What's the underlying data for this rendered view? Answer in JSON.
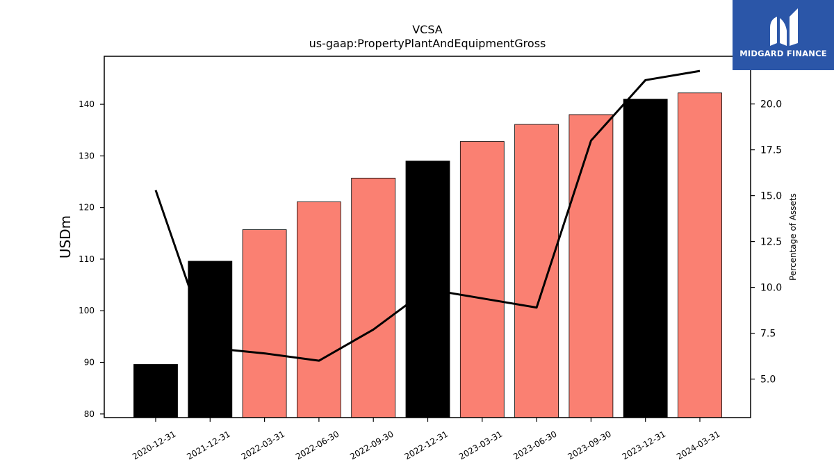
{
  "chart_data": {
    "type": "bar",
    "title": "VCSA",
    "subtitle": "us-gaap:PropertyPlantAndEquipmentGross",
    "ylabel": "USDm",
    "y2label": "Percentage of Assets",
    "ylim": [
      79.3,
      149.3
    ],
    "y2lim": [
      2.9,
      22.6
    ],
    "yticks": [
      80,
      90,
      100,
      110,
      120,
      130,
      140
    ],
    "y2ticks": [
      5.0,
      7.5,
      10.0,
      12.5,
      15.0,
      17.5,
      20.0
    ],
    "categories": [
      "2020-12-31",
      "2021-12-31",
      "2022-03-31",
      "2022-06-30",
      "2022-09-30",
      "2022-12-31",
      "2023-03-31",
      "2023-06-30",
      "2023-09-30",
      "2023-12-31",
      "2024-03-31"
    ],
    "values": [
      89.6,
      109.6,
      115.7,
      121.1,
      125.7,
      129.0,
      132.8,
      136.1,
      138.0,
      141.0,
      142.2
    ],
    "bar_colors": [
      "#000000",
      "#000000",
      "#fa8072",
      "#fa8072",
      "#fa8072",
      "#000000",
      "#fa8072",
      "#fa8072",
      "#fa8072",
      "#000000",
      "#fa8072"
    ],
    "line_values": [
      15.3,
      6.7,
      6.4,
      6.0,
      7.7,
      9.9,
      9.4,
      8.9,
      18.0,
      21.3,
      21.8
    ],
    "line_color": "#000000",
    "grid": false
  },
  "logo": {
    "text": "MIDGARD FINANCE",
    "background": "#2b56a8"
  }
}
